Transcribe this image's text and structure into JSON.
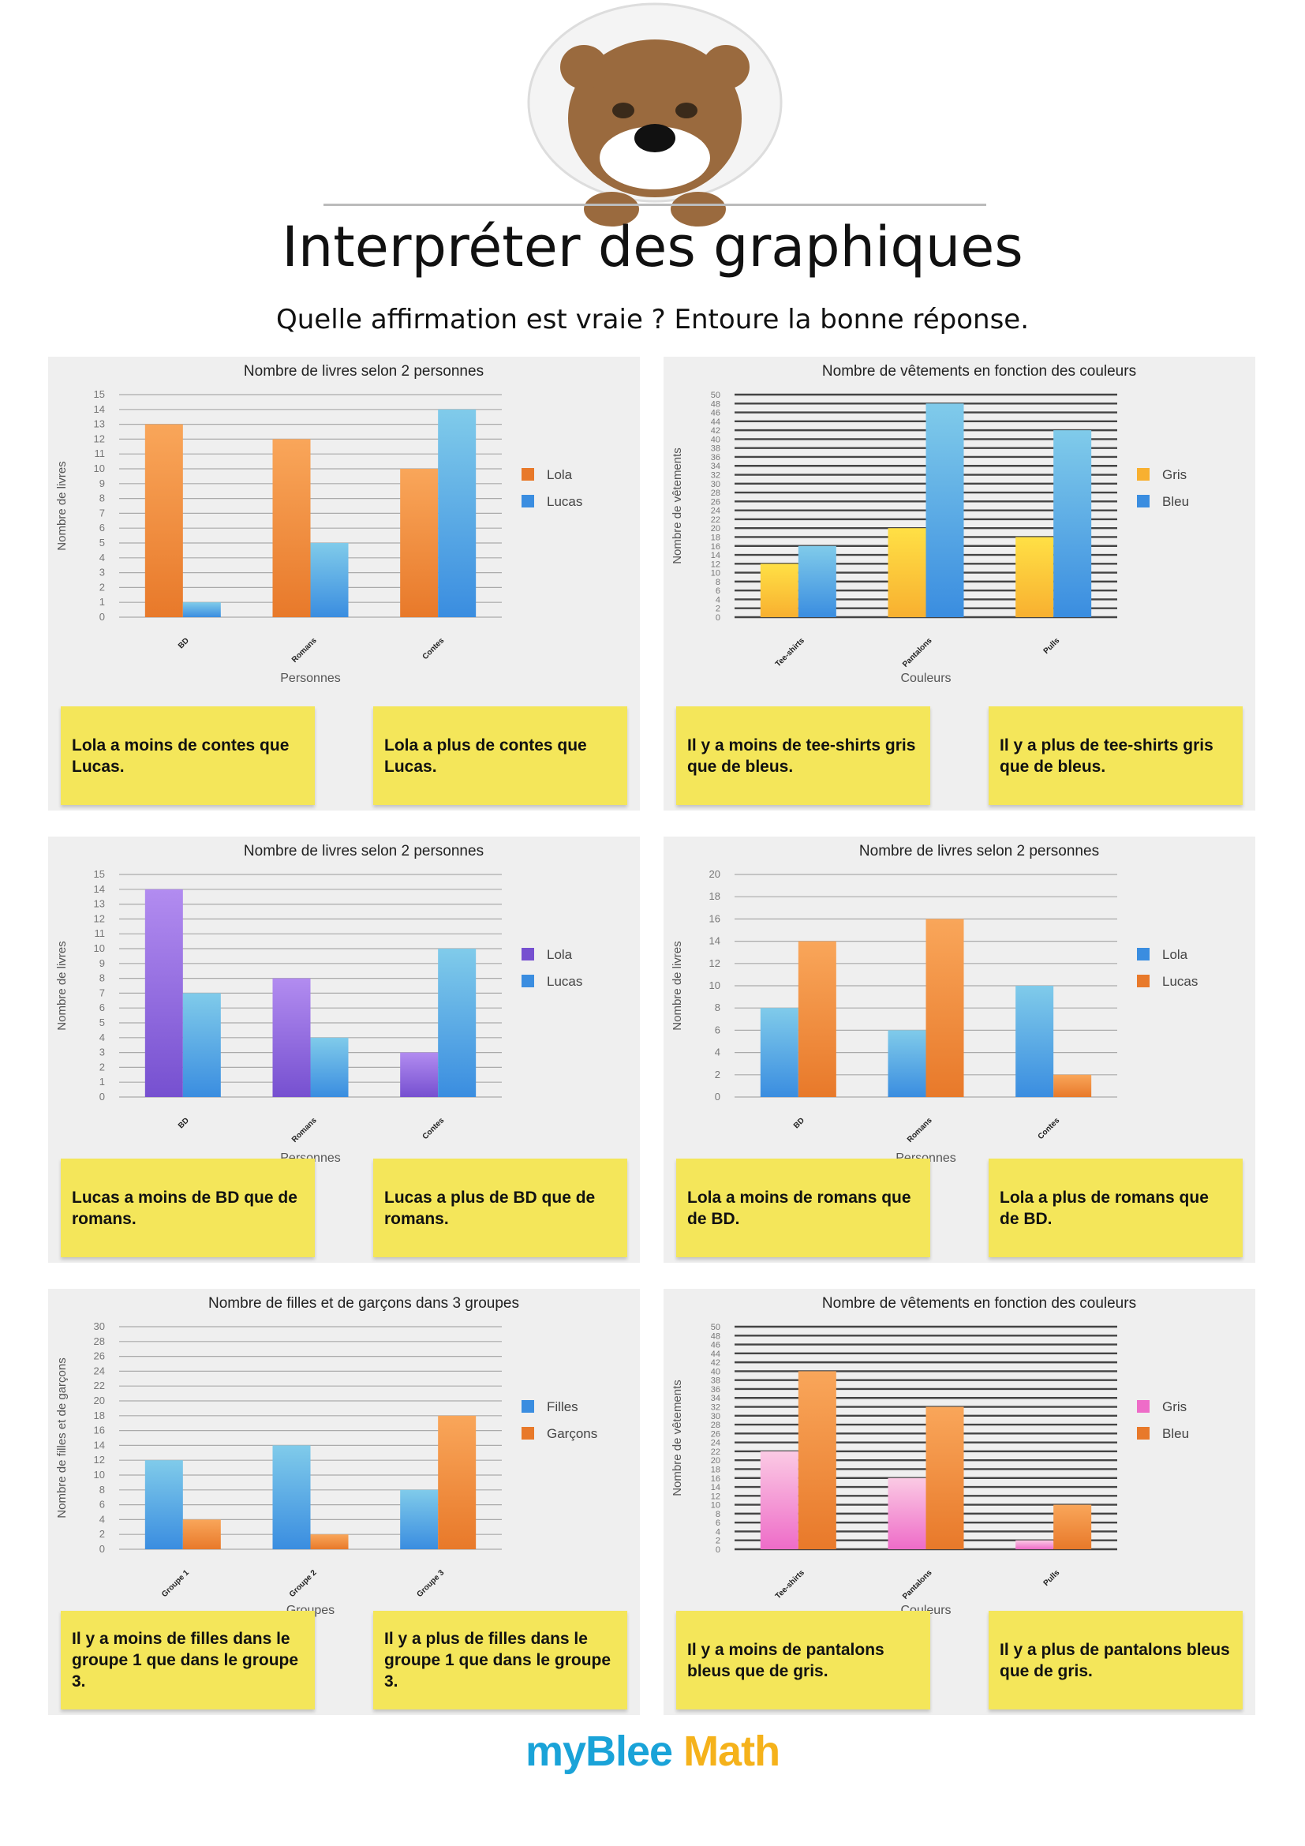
{
  "header": {
    "title": "Interpréter des graphiques",
    "subtitle": "Quelle affirmation est vraie ? Entoure la bonne réponse.",
    "mascot_icon": "bear-mascot-icon"
  },
  "footer": {
    "logo_my": "my",
    "logo_blee": "Blee",
    "logo_math": "Math"
  },
  "colors": {
    "answer_box": "#f4e65a",
    "orange": "#f28b30",
    "blue": "#4aa3e6",
    "purple": "#9868e0",
    "yellow": "#fcc83a",
    "pink": "#f28fd0"
  },
  "chart_data": [
    {
      "type": "bar",
      "title": "Nombre de livres selon 2 personnes",
      "xlabel": "Personnes",
      "ylabel": "Nombre de livres",
      "categories": [
        "BD",
        "Romans",
        "Contes"
      ],
      "ylim": [
        0,
        15
      ],
      "ystep": 1,
      "grid": true,
      "legend": "right",
      "series": [
        {
          "name": "Lola",
          "color": "orange",
          "values": [
            13,
            12,
            10
          ]
        },
        {
          "name": "Lucas",
          "color": "blue",
          "values": [
            1,
            5,
            14
          ]
        }
      ]
    },
    {
      "type": "bar",
      "title": "Nombre de vêtements en fonction des couleurs",
      "xlabel": "Couleurs",
      "ylabel": "Nombre de vêtements",
      "categories": [
        "Tee-shirts",
        "Pantalons",
        "Pulls"
      ],
      "ylim": [
        0,
        50
      ],
      "ystep": 2,
      "grid": true,
      "legend": "right",
      "series": [
        {
          "name": "Gris",
          "color": "yellow",
          "values": [
            12,
            20,
            18
          ]
        },
        {
          "name": "Bleu",
          "color": "blue",
          "values": [
            16,
            48,
            42
          ]
        }
      ]
    },
    {
      "type": "bar",
      "title": "Nombre de livres selon 2 personnes",
      "xlabel": "Personnes",
      "ylabel": "Nombre de livres",
      "categories": [
        "BD",
        "Romans",
        "Contes"
      ],
      "ylim": [
        0,
        15
      ],
      "ystep": 1,
      "grid": true,
      "legend": "right",
      "series": [
        {
          "name": "Lola",
          "color": "purple",
          "values": [
            14,
            8,
            3
          ]
        },
        {
          "name": "Lucas",
          "color": "blue",
          "values": [
            7,
            4,
            10
          ]
        }
      ]
    },
    {
      "type": "bar",
      "title": "Nombre de livres selon 2 personnes",
      "xlabel": "Personnes",
      "ylabel": "Nombre de livres",
      "categories": [
        "BD",
        "Romans",
        "Contes"
      ],
      "ylim": [
        0,
        20
      ],
      "ystep": 2,
      "grid": true,
      "legend": "right",
      "series": [
        {
          "name": "Lola",
          "color": "blue",
          "values": [
            8,
            6,
            10
          ]
        },
        {
          "name": "Lucas",
          "color": "orange",
          "values": [
            14,
            16,
            2
          ]
        }
      ]
    },
    {
      "type": "bar",
      "title": "Nombre de filles et de garçons dans 3 groupes",
      "xlabel": "Groupes",
      "ylabel": "Nombre de filles et de garçons",
      "categories": [
        "Groupe 1",
        "Groupe 2",
        "Groupe 3"
      ],
      "ylim": [
        0,
        30
      ],
      "ystep": 2,
      "grid": true,
      "legend": "right",
      "series": [
        {
          "name": "Filles",
          "color": "blue",
          "values": [
            12,
            14,
            8
          ]
        },
        {
          "name": "Garçons",
          "color": "orange",
          "values": [
            4,
            2,
            18
          ]
        }
      ]
    },
    {
      "type": "bar",
      "title": "Nombre de vêtements en fonction des couleurs",
      "xlabel": "Couleurs",
      "ylabel": "Nombre de vêtements",
      "categories": [
        "Tee-shirts",
        "Pantalons",
        "Pulls"
      ],
      "ylim": [
        0,
        50
      ],
      "ystep": 2,
      "grid": true,
      "legend": "right",
      "series": [
        {
          "name": "Gris",
          "color": "pink",
          "values": [
            22,
            16,
            2
          ]
        },
        {
          "name": "Bleu",
          "color": "orange",
          "values": [
            40,
            32,
            10
          ]
        }
      ]
    }
  ],
  "answers": [
    [
      "Lola a moins de contes que Lucas.",
      "Lola a plus de contes que Lucas."
    ],
    [
      "Il y a moins de tee-shirts gris que de bleus.",
      "Il y a plus de tee-shirts gris que de bleus."
    ],
    [
      "Lucas a moins de BD que de romans.",
      "Lucas a plus de BD que de romans."
    ],
    [
      "Lola a moins de romans que de BD.",
      "Lola a plus de romans que de BD."
    ],
    [
      "Il y a moins de filles dans le groupe 1 que dans le groupe 3.",
      "Il y a plus de filles dans le groupe 1 que dans le groupe 3."
    ],
    [
      "Il y a moins de pantalons bleus que de gris.",
      "Il y a plus de pantalons bleus que de gris."
    ]
  ]
}
